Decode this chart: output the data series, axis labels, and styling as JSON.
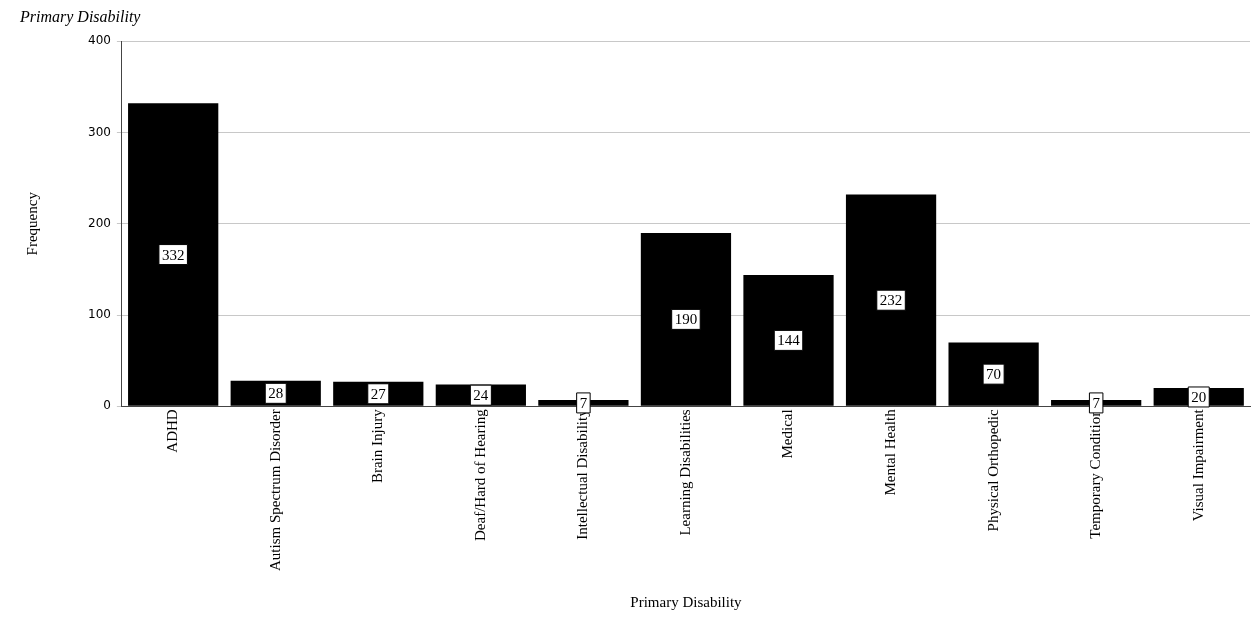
{
  "chart_data": {
    "type": "bar",
    "title": "Primary Disability",
    "xlabel": "Primary Disability",
    "ylabel": "Frequency",
    "categories": [
      "ADHD",
      "Autism Spectrum Disorder",
      "Brain Injury",
      "Deaf/Hard of Hearing",
      "Intellectual Disability",
      "Learning Disabilities",
      "Medical",
      "Mental Health",
      "Physical Orthopedic",
      "Temporary Condition",
      "Visual Impairment"
    ],
    "values": [
      332,
      28,
      27,
      24,
      7,
      190,
      144,
      232,
      70,
      7,
      20
    ],
    "color": "#000000",
    "ylim": [
      0,
      400
    ],
    "yticks": [
      0,
      100,
      200,
      300,
      400
    ],
    "grid": "y",
    "legend": false,
    "data_labels": true
  }
}
